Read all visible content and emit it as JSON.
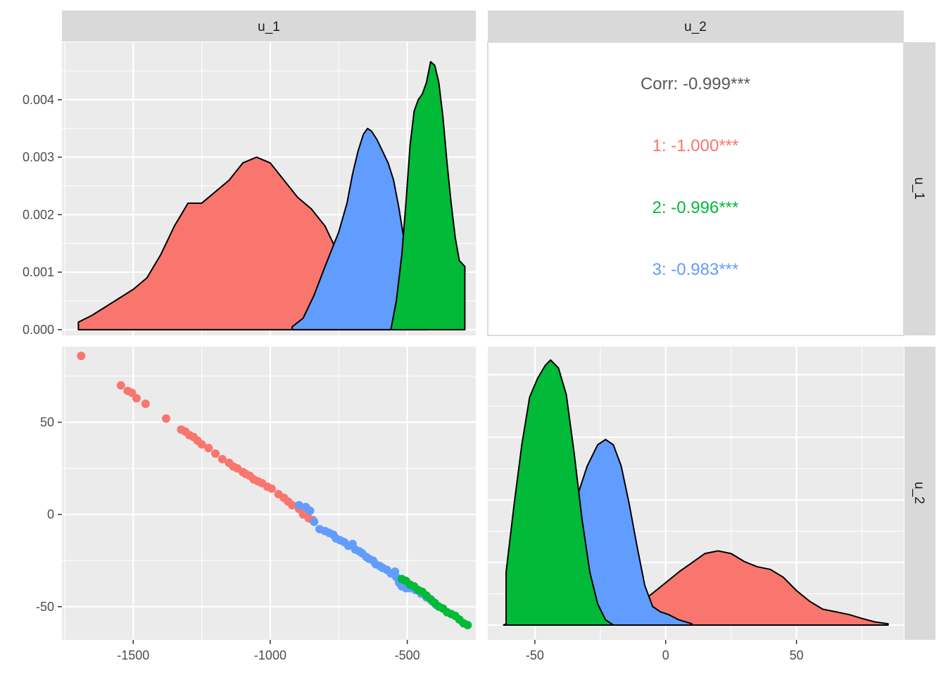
{
  "chart_data": {
    "type": "pairs",
    "variables": [
      "u_1",
      "u_2"
    ],
    "groups": [
      "1",
      "2",
      "3"
    ],
    "colors": {
      "1": "#F8766D",
      "2": "#00BA38",
      "3": "#619CFF"
    },
    "panel_background": "#EBEBEB",
    "strip_background": "#D9D9D9",
    "grid": true,
    "legend": "none",
    "axes": {
      "u_1": {
        "range": [
          -1760,
          -250
        ],
        "ticks": [
          -1500,
          -1000,
          -500
        ],
        "tick_labels": [
          "-1500",
          "-1000",
          "-500"
        ]
      },
      "u_2": {
        "range": [
          -68,
          91
        ],
        "ticks": [
          -50,
          0,
          50
        ],
        "tick_labels": [
          "-50",
          "0",
          "50"
        ]
      },
      "u_1_density": {
        "range": [
          -0.0001,
          0.005
        ],
        "ticks": [
          0,
          0.001,
          0.002,
          0.003,
          0.004
        ],
        "tick_labels": [
          "0.000",
          "0.001",
          "0.002",
          "0.003",
          "0.004"
        ]
      }
    },
    "correlation": {
      "overall": "Corr: -0.999***",
      "by_group": [
        {
          "group": "1",
          "label": "1: -1.000***"
        },
        {
          "group": "2",
          "label": "2: -0.996***"
        },
        {
          "group": "3",
          "label": "3: -0.983***"
        }
      ]
    },
    "density_u_1": [
      {
        "group": "1",
        "points": [
          [
            -1700,
            0.00013
          ],
          [
            -1650,
            0.00025
          ],
          [
            -1600,
            0.0004
          ],
          [
            -1550,
            0.00055
          ],
          [
            -1500,
            0.0007
          ],
          [
            -1450,
            0.0009
          ],
          [
            -1400,
            0.0013
          ],
          [
            -1350,
            0.0018
          ],
          [
            -1300,
            0.0022
          ],
          [
            -1250,
            0.0022
          ],
          [
            -1200,
            0.0024
          ],
          [
            -1150,
            0.0026
          ],
          [
            -1100,
            0.0029
          ],
          [
            -1050,
            0.003
          ],
          [
            -1000,
            0.0029
          ],
          [
            -950,
            0.0026
          ],
          [
            -900,
            0.0023
          ],
          [
            -850,
            0.0021
          ],
          [
            -800,
            0.0018
          ],
          [
            -750,
            0.0013
          ],
          [
            -700,
            0.0009
          ],
          [
            -650,
            0.0005
          ],
          [
            -600,
            0.0002
          ],
          [
            -550,
            2e-05
          ]
        ]
      },
      {
        "group": "3",
        "points": [
          [
            -920,
            5e-05
          ],
          [
            -880,
            0.0002
          ],
          [
            -840,
            0.0006
          ],
          [
            -800,
            0.0011
          ],
          [
            -750,
            0.0017
          ],
          [
            -720,
            0.0022
          ],
          [
            -700,
            0.0027
          ],
          [
            -680,
            0.0031
          ],
          [
            -660,
            0.0034
          ],
          [
            -645,
            0.0035
          ],
          [
            -630,
            0.00345
          ],
          [
            -610,
            0.0033
          ],
          [
            -590,
            0.0031
          ],
          [
            -570,
            0.0029
          ],
          [
            -550,
            0.0026
          ],
          [
            -530,
            0.0021
          ],
          [
            -510,
            0.0015
          ],
          [
            -490,
            0.0009
          ],
          [
            -470,
            0.0004
          ],
          [
            -450,
            0.0001
          ],
          [
            -430,
            1e-05
          ]
        ]
      },
      {
        "group": "2",
        "points": [
          [
            -560,
            0.0
          ],
          [
            -540,
            0.0005
          ],
          [
            -520,
            0.0013
          ],
          [
            -505,
            0.0022
          ],
          [
            -490,
            0.0032
          ],
          [
            -475,
            0.0038
          ],
          [
            -460,
            0.004
          ],
          [
            -445,
            0.0041
          ],
          [
            -430,
            0.0043
          ],
          [
            -415,
            0.00466
          ],
          [
            -400,
            0.0046
          ],
          [
            -385,
            0.0043
          ],
          [
            -370,
            0.0037
          ],
          [
            -355,
            0.0029
          ],
          [
            -340,
            0.0022
          ],
          [
            -325,
            0.0016
          ],
          [
            -310,
            0.0012
          ],
          [
            -290,
            0.0011
          ]
        ]
      }
    ],
    "density_u_2": [
      {
        "group": "1",
        "points": [
          [
            -25,
            0.0
          ],
          [
            -15,
            0.05
          ],
          [
            -5,
            0.12
          ],
          [
            5,
            0.2
          ],
          [
            15,
            0.27
          ],
          [
            20,
            0.28
          ],
          [
            25,
            0.27
          ],
          [
            30,
            0.24
          ],
          [
            35,
            0.22
          ],
          [
            40,
            0.21
          ],
          [
            45,
            0.18
          ],
          [
            50,
            0.13
          ],
          [
            55,
            0.09
          ],
          [
            60,
            0.06
          ],
          [
            65,
            0.05
          ],
          [
            70,
            0.04
          ],
          [
            75,
            0.025
          ],
          [
            80,
            0.012
          ],
          [
            85,
            0.005
          ]
        ]
      },
      {
        "group": "3",
        "points": [
          [
            -62,
            0.0
          ],
          [
            -55,
            0.03
          ],
          [
            -50,
            0.08
          ],
          [
            -45,
            0.16
          ],
          [
            -40,
            0.28
          ],
          [
            -35,
            0.45
          ],
          [
            -30,
            0.6
          ],
          [
            -26,
            0.68
          ],
          [
            -23,
            0.7
          ],
          [
            -20,
            0.68
          ],
          [
            -17,
            0.6
          ],
          [
            -14,
            0.46
          ],
          [
            -11,
            0.3
          ],
          [
            -8,
            0.15
          ],
          [
            -5,
            0.07
          ],
          [
            -2,
            0.05
          ],
          [
            1,
            0.04
          ],
          [
            5,
            0.02
          ],
          [
            10,
            0.005
          ]
        ]
      },
      {
        "group": "2",
        "points": [
          [
            -61,
            0.2
          ],
          [
            -58,
            0.45
          ],
          [
            -55,
            0.68
          ],
          [
            -52,
            0.86
          ],
          [
            -49,
            0.93
          ],
          [
            -46,
            0.98
          ],
          [
            -44,
            1.0
          ],
          [
            -41,
            0.97
          ],
          [
            -38,
            0.87
          ],
          [
            -35,
            0.65
          ],
          [
            -32,
            0.4
          ],
          [
            -29,
            0.2
          ],
          [
            -26,
            0.08
          ],
          [
            -23,
            0.02
          ],
          [
            -20,
            0.0
          ]
        ]
      }
    ],
    "scatter": [
      {
        "group": "1",
        "points": [
          [
            -1690,
            86
          ],
          [
            -1545,
            70
          ],
          [
            -1520,
            67
          ],
          [
            -1505,
            66
          ],
          [
            -1488,
            63
          ],
          [
            -1455,
            60
          ],
          [
            -1380,
            52
          ],
          [
            -1325,
            46
          ],
          [
            -1310,
            45
          ],
          [
            -1295,
            43
          ],
          [
            -1280,
            42
          ],
          [
            -1265,
            40
          ],
          [
            -1250,
            38
          ],
          [
            -1225,
            36
          ],
          [
            -1200,
            33
          ],
          [
            -1175,
            30
          ],
          [
            -1150,
            28
          ],
          [
            -1135,
            26
          ],
          [
            -1120,
            25
          ],
          [
            -1100,
            23
          ],
          [
            -1090,
            22
          ],
          [
            -1075,
            21
          ],
          [
            -1060,
            19
          ],
          [
            -1045,
            18
          ],
          [
            -1030,
            17
          ],
          [
            -1010,
            15
          ],
          [
            -995,
            14
          ],
          [
            -970,
            11
          ],
          [
            -950,
            9
          ],
          [
            -935,
            7
          ],
          [
            -920,
            5
          ],
          [
            -895,
            3
          ],
          [
            -880,
            0
          ],
          [
            -860,
            -2
          ],
          [
            -845,
            -3
          ]
        ]
      },
      {
        "group": "3",
        "points": [
          [
            -895,
            5
          ],
          [
            -870,
            4
          ],
          [
            -855,
            2
          ],
          [
            -840,
            -4
          ],
          [
            -820,
            -8
          ],
          [
            -800,
            -9
          ],
          [
            -785,
            -10
          ],
          [
            -770,
            -11
          ],
          [
            -760,
            -13
          ],
          [
            -745,
            -14
          ],
          [
            -730,
            -15
          ],
          [
            -715,
            -17
          ],
          [
            -700,
            -16
          ],
          [
            -690,
            -19
          ],
          [
            -675,
            -20
          ],
          [
            -665,
            -21
          ],
          [
            -650,
            -23
          ],
          [
            -640,
            -24
          ],
          [
            -625,
            -25
          ],
          [
            -615,
            -27
          ],
          [
            -600,
            -28
          ],
          [
            -590,
            -29
          ],
          [
            -575,
            -30
          ],
          [
            -560,
            -32
          ],
          [
            -545,
            -31
          ],
          [
            -540,
            -34
          ],
          [
            -530,
            -37
          ],
          [
            -520,
            -39
          ],
          [
            -505,
            -40
          ],
          [
            -490,
            -40
          ],
          [
            -470,
            -41
          ],
          [
            -450,
            -43
          ],
          [
            -430,
            -45
          ],
          [
            -410,
            -47
          ],
          [
            -395,
            -49
          ]
        ]
      },
      {
        "group": "2",
        "points": [
          [
            -520,
            -35
          ],
          [
            -505,
            -36
          ],
          [
            -490,
            -38
          ],
          [
            -475,
            -39
          ],
          [
            -460,
            -41
          ],
          [
            -445,
            -42
          ],
          [
            -430,
            -44
          ],
          [
            -415,
            -46
          ],
          [
            -400,
            -48
          ],
          [
            -385,
            -50
          ],
          [
            -370,
            -51
          ],
          [
            -355,
            -53
          ],
          [
            -340,
            -54
          ],
          [
            -325,
            -55
          ],
          [
            -310,
            -57
          ],
          [
            -295,
            -59
          ],
          [
            -280,
            -60
          ]
        ]
      }
    ]
  }
}
